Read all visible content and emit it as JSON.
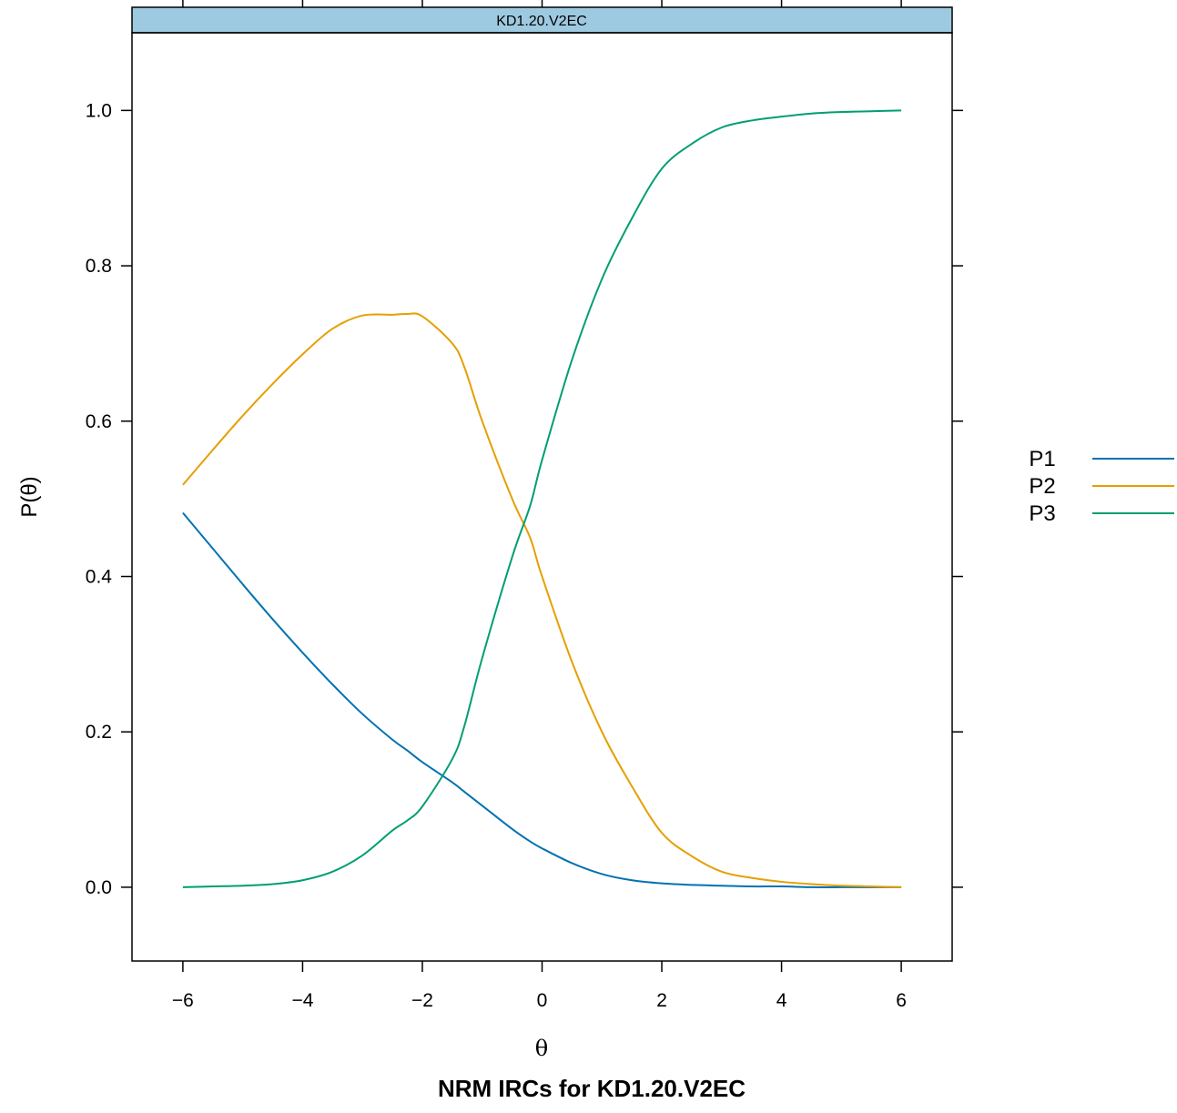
{
  "chart_data": {
    "type": "line",
    "title": "NRM IRCs for KD1.20.V2EC",
    "panel_label": "KD1.20.V2EC",
    "xlabel": "θ",
    "ylabel": "P(θ)",
    "xlim": [
      -6.85,
      6.85
    ],
    "ylim": [
      -0.095,
      1.1
    ],
    "x_ticks": [
      -6,
      -4,
      -2,
      0,
      2,
      4,
      6
    ],
    "x_tick_labels": [
      "−6",
      "−4",
      "−2",
      "0",
      "2",
      "4",
      "6"
    ],
    "y_ticks": [
      0.0,
      0.2,
      0.4,
      0.6,
      0.8,
      1.0
    ],
    "y_tick_labels": [
      "0.0",
      "0.2",
      "0.4",
      "0.6",
      "0.8",
      "1.0"
    ],
    "grid": false,
    "legend_position": "right",
    "x": [
      -6,
      -5.5,
      -5,
      -4.5,
      -4,
      -3.5,
      -3,
      -2.5,
      -2.25,
      -2,
      -1.5,
      -1.3,
      -1,
      -0.5,
      -0.2,
      0,
      0.5,
      1,
      1.5,
      2,
      2.5,
      3,
      3.5,
      4,
      4.5,
      5,
      5.5,
      6
    ],
    "series": [
      {
        "name": "P1",
        "color": "#0072B2",
        "values": [
          0.482,
          0.436,
          0.39,
          0.345,
          0.302,
          0.261,
          0.223,
          0.19,
          0.176,
          0.161,
          0.135,
          0.123,
          0.105,
          0.075,
          0.059,
          0.05,
          0.031,
          0.017,
          0.009,
          0.005,
          0.003,
          0.002,
          0.001,
          0.001,
          0.0,
          0.0,
          0.0,
          0.0
        ]
      },
      {
        "name": "P2",
        "color": "#E69F00",
        "values": [
          0.518,
          0.563,
          0.607,
          0.648,
          0.686,
          0.719,
          0.736,
          0.737,
          0.738,
          0.735,
          0.7,
          0.67,
          0.6,
          0.5,
          0.45,
          0.4,
          0.29,
          0.2,
          0.13,
          0.07,
          0.04,
          0.02,
          0.012,
          0.007,
          0.004,
          0.002,
          0.001,
          0.0
        ]
      },
      {
        "name": "P3",
        "color": "#009E73",
        "values": [
          0.0,
          0.001,
          0.002,
          0.004,
          0.009,
          0.02,
          0.041,
          0.073,
          0.086,
          0.104,
          0.165,
          0.207,
          0.295,
          0.425,
          0.491,
          0.55,
          0.679,
          0.783,
          0.861,
          0.925,
          0.957,
          0.978,
          0.987,
          0.992,
          0.996,
          0.998,
          0.999,
          1.0
        ]
      }
    ]
  }
}
